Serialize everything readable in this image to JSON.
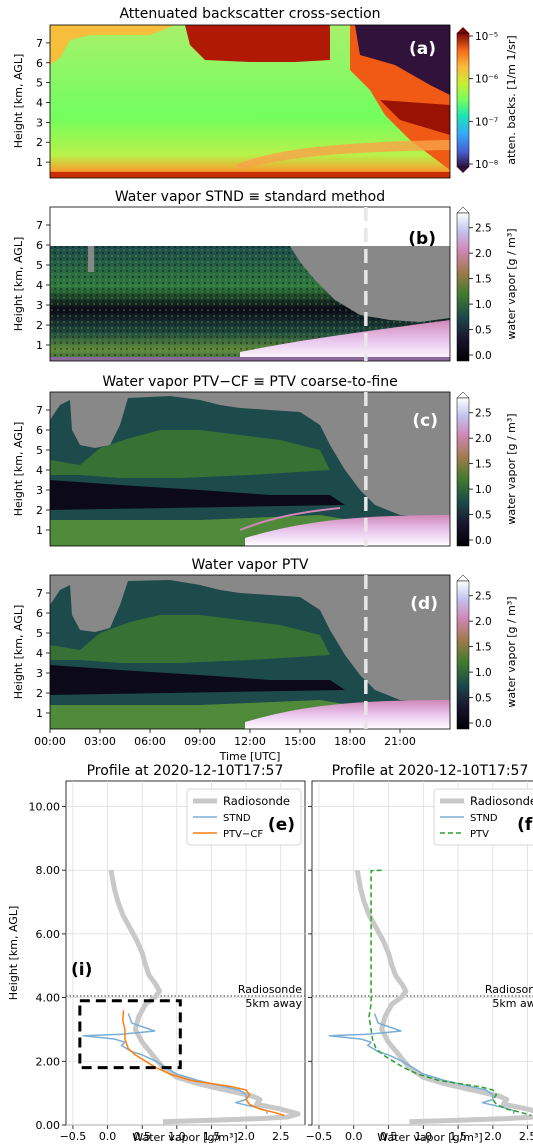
{
  "chart_data": [
    {
      "type": "heatmap",
      "panel": "(a)",
      "title": "Attenuated backscatter cross-section",
      "ylabel": "Height [km, AGL]",
      "ylim": [
        0.2,
        7.9
      ],
      "yticks": [
        "1",
        "2",
        "3",
        "4",
        "5",
        "6",
        "7"
      ],
      "colorbar": {
        "label": "atten. backs. [1/m 1/sr]",
        "scale": "log",
        "ticks": [
          "10⁻⁵",
          "10⁻⁶",
          "10⁻⁷",
          "10⁻⁸"
        ],
        "colormap": "turbo"
      }
    },
    {
      "type": "heatmap",
      "panel": "(b)",
      "title": "Water vapor STND ≡ standard method",
      "ylabel": "Height [km, AGL]",
      "ylim": [
        0.2,
        7.9
      ],
      "yticks": [
        "1",
        "2",
        "3",
        "4",
        "5",
        "6",
        "7"
      ],
      "marker_time": "18:57",
      "colorbar": {
        "label": "water vapor [g / m³]",
        "ticks": [
          "2.5",
          "2.0",
          "1.5",
          "1.0",
          "0.5",
          "0.0"
        ],
        "range": [
          0,
          2.5
        ],
        "colormap": "cubehelix"
      }
    },
    {
      "type": "heatmap",
      "panel": "(c)",
      "title": "Water vapor PTV−CF ≡ PTV coarse-to-fine",
      "ylabel": "Height [km, AGL]",
      "ylim": [
        0.2,
        7.9
      ],
      "yticks": [
        "1",
        "2",
        "3",
        "4",
        "5",
        "6",
        "7"
      ],
      "marker_time": "18:57",
      "colorbar": {
        "label": "water vapor [g / m³]",
        "ticks": [
          "2.5",
          "2.0",
          "1.5",
          "1.0",
          "0.5",
          "0.0"
        ],
        "range": [
          0,
          2.5
        ],
        "colormap": "cubehelix"
      }
    },
    {
      "type": "heatmap",
      "panel": "(d)",
      "title": "Water vapor PTV",
      "ylabel": "Height [km, AGL]",
      "xlabel": "Time [UTC]",
      "ylim": [
        0.2,
        7.9
      ],
      "yticks": [
        "1",
        "2",
        "3",
        "4",
        "5",
        "6",
        "7"
      ],
      "xticks": [
        "00:00",
        "03:00",
        "06:00",
        "09:00",
        "12:00",
        "15:00",
        "18:00",
        "21:00"
      ],
      "marker_time": "18:57",
      "colorbar": {
        "label": "water vapor [g / m³]",
        "ticks": [
          "2.5",
          "2.0",
          "1.5",
          "1.0",
          "0.5",
          "0.0"
        ],
        "range": [
          0,
          2.5
        ],
        "colormap": "cubehelix"
      }
    },
    {
      "type": "line",
      "panel": "(e)",
      "title": "Profile at 2020-12-10T17:57",
      "xlabel": "Water vapor [g/m³]",
      "ylabel": "Height [km, AGL]",
      "xlim": [
        -0.6,
        2.85
      ],
      "ylim": [
        0,
        10.8
      ],
      "xticks": [
        "−0.5",
        "0.0",
        "0.5",
        "1.0",
        "1.5",
        "2.0",
        "2.5"
      ],
      "yticks": [
        "0.00",
        "2.00",
        "4.00",
        "6.00",
        "8.00",
        "10.00"
      ],
      "reference_line": {
        "y": 4.05,
        "label": "Radiosonde\n5km away"
      },
      "panel_letter": "(i)",
      "highlight_box": {
        "x": [
          -0.4,
          1.05
        ],
        "y": [
          1.8,
          3.9
        ]
      },
      "legend": "upper right",
      "series": [
        {
          "name": "Radiosonde",
          "color": "#c8c8c8",
          "style": "solid",
          "points": [
            [
              0.05,
              8.0
            ],
            [
              0.1,
              7.4
            ],
            [
              0.15,
              7.0
            ],
            [
              0.22,
              6.6
            ],
            [
              0.32,
              6.2
            ],
            [
              0.42,
              5.8
            ],
            [
              0.5,
              5.4
            ],
            [
              0.55,
              5.0
            ],
            [
              0.6,
              4.7
            ],
            [
              0.7,
              4.4
            ],
            [
              0.75,
              4.2
            ],
            [
              0.68,
              4.0
            ],
            [
              0.55,
              3.8
            ],
            [
              0.45,
              3.4
            ],
            [
              0.4,
              3.0
            ],
            [
              0.5,
              2.6
            ],
            [
              0.65,
              2.2
            ],
            [
              0.8,
              1.8
            ],
            [
              1.0,
              1.5
            ],
            [
              1.3,
              1.3
            ],
            [
              1.6,
              1.15
            ],
            [
              1.9,
              1.0
            ],
            [
              2.1,
              0.9
            ],
            [
              2.2,
              0.8
            ],
            [
              2.15,
              0.65
            ],
            [
              2.5,
              0.5
            ],
            [
              2.75,
              0.35
            ],
            [
              2.6,
              0.25
            ],
            [
              2.2,
              0.2
            ],
            [
              1.5,
              0.15
            ],
            [
              0.8,
              0.1
            ]
          ]
        },
        {
          "name": "STND",
          "color": "#7aaed6",
          "style": "solid",
          "points": [
            [
              0.3,
              3.5
            ],
            [
              0.35,
              3.2
            ],
            [
              0.68,
              2.95
            ],
            [
              0.45,
              2.9
            ],
            [
              0.2,
              2.85
            ],
            [
              -0.35,
              2.8
            ],
            [
              0.1,
              2.7
            ],
            [
              0.25,
              2.6
            ],
            [
              0.2,
              2.5
            ],
            [
              0.35,
              2.3
            ],
            [
              0.5,
              2.2
            ],
            [
              0.7,
              2.0
            ],
            [
              0.85,
              1.8
            ],
            [
              1.0,
              1.6
            ],
            [
              1.3,
              1.4
            ],
            [
              1.6,
              1.25
            ],
            [
              1.9,
              1.1
            ],
            [
              2.0,
              0.95
            ],
            [
              2.0,
              0.8
            ],
            [
              1.85,
              0.7
            ],
            [
              2.15,
              0.55
            ],
            [
              2.3,
              0.45
            ],
            [
              2.3,
              0.35
            ]
          ]
        },
        {
          "name": "PTV−CF",
          "color": "#ff7f0e",
          "style": "solid",
          "points": [
            [
              0.23,
              3.6
            ],
            [
              0.22,
              3.3
            ],
            [
              0.25,
              3.0
            ],
            [
              0.25,
              2.7
            ],
            [
              0.3,
              2.4
            ],
            [
              0.4,
              2.2
            ],
            [
              0.55,
              2.0
            ],
            [
              0.7,
              1.8
            ],
            [
              0.9,
              1.6
            ],
            [
              1.2,
              1.4
            ],
            [
              1.5,
              1.3
            ],
            [
              1.8,
              1.2
            ],
            [
              2.0,
              1.1
            ],
            [
              2.05,
              0.95
            ],
            [
              2.0,
              0.8
            ],
            [
              2.05,
              0.65
            ],
            [
              2.2,
              0.5
            ],
            [
              2.4,
              0.4
            ],
            [
              2.55,
              0.3
            ]
          ]
        }
      ]
    },
    {
      "type": "line",
      "panel": "(f)",
      "title": "Profile at 2020-12-10T17:57",
      "xlabel": "Water vapor [g/m³]",
      "xlim": [
        -0.6,
        2.85
      ],
      "ylim": [
        0,
        10.8
      ],
      "xticks": [
        "−0.5",
        "0.0",
        "0.5",
        "1.0",
        "1.5",
        "2.0",
        "2.5"
      ],
      "reference_line": {
        "y": 4.05,
        "label": "Radiosonde\n5km away"
      },
      "legend": "upper right",
      "series": [
        {
          "name": "Radiosonde",
          "color": "#c8c8c8",
          "style": "solid",
          "points": [
            [
              0.05,
              8.0
            ],
            [
              0.1,
              7.4
            ],
            [
              0.15,
              7.0
            ],
            [
              0.22,
              6.6
            ],
            [
              0.32,
              6.2
            ],
            [
              0.42,
              5.8
            ],
            [
              0.5,
              5.4
            ],
            [
              0.55,
              5.0
            ],
            [
              0.6,
              4.7
            ],
            [
              0.7,
              4.4
            ],
            [
              0.75,
              4.2
            ],
            [
              0.68,
              4.0
            ],
            [
              0.55,
              3.8
            ],
            [
              0.45,
              3.4
            ],
            [
              0.4,
              3.0
            ],
            [
              0.5,
              2.6
            ],
            [
              0.65,
              2.2
            ],
            [
              0.8,
              1.8
            ],
            [
              1.0,
              1.5
            ],
            [
              1.3,
              1.3
            ],
            [
              1.6,
              1.15
            ],
            [
              1.9,
              1.0
            ],
            [
              2.1,
              0.9
            ],
            [
              2.2,
              0.8
            ],
            [
              2.15,
              0.65
            ],
            [
              2.5,
              0.5
            ],
            [
              2.75,
              0.35
            ],
            [
              2.6,
              0.25
            ],
            [
              2.2,
              0.2
            ],
            [
              1.5,
              0.15
            ],
            [
              0.8,
              0.1
            ]
          ]
        },
        {
          "name": "STND",
          "color": "#7aaed6",
          "style": "solid",
          "points": [
            [
              0.3,
              3.5
            ],
            [
              0.35,
              3.2
            ],
            [
              0.68,
              2.95
            ],
            [
              0.45,
              2.9
            ],
            [
              0.2,
              2.85
            ],
            [
              -0.35,
              2.8
            ],
            [
              0.1,
              2.7
            ],
            [
              0.25,
              2.6
            ],
            [
              0.2,
              2.5
            ],
            [
              0.35,
              2.3
            ],
            [
              0.5,
              2.2
            ],
            [
              0.7,
              2.0
            ],
            [
              0.85,
              1.8
            ],
            [
              1.0,
              1.6
            ],
            [
              1.3,
              1.4
            ],
            [
              1.6,
              1.25
            ],
            [
              1.9,
              1.1
            ],
            [
              2.0,
              0.95
            ],
            [
              2.0,
              0.8
            ],
            [
              1.85,
              0.7
            ],
            [
              2.15,
              0.55
            ],
            [
              2.3,
              0.45
            ],
            [
              2.3,
              0.35
            ]
          ]
        },
        {
          "name": "PTV",
          "color": "#2ca02c",
          "style": "dashed",
          "points": [
            [
              0.4,
              8.0
            ],
            [
              0.25,
              7.98
            ],
            [
              0.25,
              3.8
            ],
            [
              0.22,
              3.4
            ],
            [
              0.25,
              3.0
            ],
            [
              0.27,
              2.7
            ],
            [
              0.32,
              2.4
            ],
            [
              0.42,
              2.2
            ],
            [
              0.57,
              2.0
            ],
            [
              0.72,
              1.8
            ],
            [
              0.92,
              1.6
            ],
            [
              1.22,
              1.4
            ],
            [
              1.52,
              1.3
            ],
            [
              1.82,
              1.2
            ],
            [
              2.0,
              1.1
            ],
            [
              2.05,
              0.95
            ],
            [
              2.0,
              0.8
            ],
            [
              2.05,
              0.65
            ],
            [
              2.2,
              0.5
            ],
            [
              2.4,
              0.4
            ],
            [
              2.55,
              0.3
            ]
          ]
        }
      ]
    }
  ]
}
